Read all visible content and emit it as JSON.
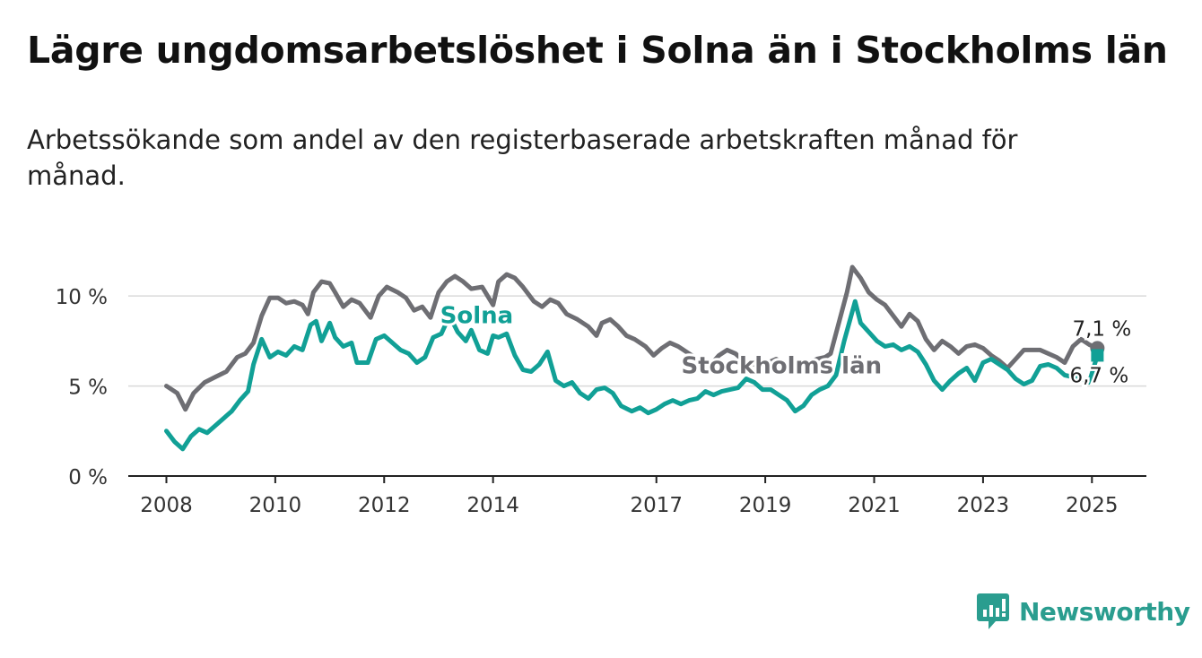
{
  "title": "Lägre ungdomsarbetslöshet i Solna än i Stockholms län",
  "subtitle": "Arbetssökande som andel av den registerbaserade arbetskraften månad för månad.",
  "brand": {
    "name": "Newsworthy",
    "icon": "chart-bubble-icon"
  },
  "chart_data": {
    "type": "line",
    "ylim": [
      0,
      12
    ],
    "xlim": [
      2007.3,
      2026.0
    ],
    "y_ticks": [
      {
        "value": 0,
        "label": "0 %"
      },
      {
        "value": 5,
        "label": "5 %"
      },
      {
        "value": 10,
        "label": "10 %"
      }
    ],
    "x_ticks": [
      {
        "value": 2008,
        "label": "2008"
      },
      {
        "value": 2010,
        "label": "2010"
      },
      {
        "value": 2012,
        "label": "2012"
      },
      {
        "value": 2014,
        "label": "2014"
      },
      {
        "value": 2017,
        "label": "2017"
      },
      {
        "value": 2019,
        "label": "2019"
      },
      {
        "value": 2021,
        "label": "2021"
      },
      {
        "value": 2023,
        "label": "2023"
      },
      {
        "value": 2025,
        "label": "2025"
      }
    ],
    "grid": true,
    "series": [
      {
        "name": "Stockholms län",
        "color": "#6e6e73",
        "end_label": "7,1 %",
        "points": [
          [
            2008.0,
            5.0
          ],
          [
            2008.2,
            4.6
          ],
          [
            2008.35,
            3.7
          ],
          [
            2008.5,
            4.6
          ],
          [
            2008.7,
            5.2
          ],
          [
            2008.9,
            5.5
          ],
          [
            2009.1,
            5.8
          ],
          [
            2009.3,
            6.6
          ],
          [
            2009.45,
            6.8
          ],
          [
            2009.6,
            7.4
          ],
          [
            2009.75,
            8.9
          ],
          [
            2009.9,
            9.9
          ],
          [
            2010.05,
            9.9
          ],
          [
            2010.2,
            9.6
          ],
          [
            2010.35,
            9.7
          ],
          [
            2010.5,
            9.5
          ],
          [
            2010.6,
            9.0
          ],
          [
            2010.7,
            10.2
          ],
          [
            2010.85,
            10.8
          ],
          [
            2011.0,
            10.7
          ],
          [
            2011.1,
            10.2
          ],
          [
            2011.25,
            9.4
          ],
          [
            2011.4,
            9.8
          ],
          [
            2011.55,
            9.6
          ],
          [
            2011.75,
            8.8
          ],
          [
            2011.9,
            10.0
          ],
          [
            2012.05,
            10.5
          ],
          [
            2012.25,
            10.2
          ],
          [
            2012.4,
            9.9
          ],
          [
            2012.55,
            9.2
          ],
          [
            2012.7,
            9.4
          ],
          [
            2012.85,
            8.8
          ],
          [
            2013.0,
            10.2
          ],
          [
            2013.15,
            10.8
          ],
          [
            2013.3,
            11.1
          ],
          [
            2013.45,
            10.8
          ],
          [
            2013.6,
            10.4
          ],
          [
            2013.8,
            10.5
          ],
          [
            2014.0,
            9.5
          ],
          [
            2014.1,
            10.8
          ],
          [
            2014.25,
            11.2
          ],
          [
            2014.4,
            11.0
          ],
          [
            2014.55,
            10.5
          ],
          [
            2014.75,
            9.7
          ],
          [
            2014.9,
            9.4
          ],
          [
            2015.05,
            9.8
          ],
          [
            2015.2,
            9.6
          ],
          [
            2015.35,
            9.0
          ],
          [
            2015.55,
            8.7
          ],
          [
            2015.75,
            8.3
          ],
          [
            2015.9,
            7.8
          ],
          [
            2016.0,
            8.5
          ],
          [
            2016.15,
            8.7
          ],
          [
            2016.3,
            8.3
          ],
          [
            2016.45,
            7.8
          ],
          [
            2016.6,
            7.6
          ],
          [
            2016.8,
            7.2
          ],
          [
            2016.95,
            6.7
          ],
          [
            2017.1,
            7.1
          ],
          [
            2017.25,
            7.4
          ],
          [
            2017.4,
            7.2
          ],
          [
            2017.55,
            6.9
          ],
          [
            2017.7,
            6.6
          ],
          [
            2017.85,
            6.4
          ],
          [
            2018.0,
            6.2
          ],
          [
            2018.15,
            6.7
          ],
          [
            2018.3,
            7.0
          ],
          [
            2018.45,
            6.8
          ],
          [
            2018.6,
            6.4
          ],
          [
            2018.75,
            6.3
          ],
          [
            2018.9,
            6.0
          ],
          [
            2019.05,
            6.3
          ],
          [
            2019.2,
            6.5
          ],
          [
            2019.35,
            6.2
          ],
          [
            2019.5,
            6.0
          ],
          [
            2019.65,
            6.1
          ],
          [
            2019.8,
            6.3
          ],
          [
            2019.95,
            6.5
          ],
          [
            2020.1,
            6.6
          ],
          [
            2020.2,
            6.8
          ],
          [
            2020.35,
            8.5
          ],
          [
            2020.5,
            10.2
          ],
          [
            2020.6,
            11.6
          ],
          [
            2020.75,
            11.0
          ],
          [
            2020.9,
            10.2
          ],
          [
            2021.05,
            9.8
          ],
          [
            2021.2,
            9.5
          ],
          [
            2021.35,
            8.9
          ],
          [
            2021.5,
            8.3
          ],
          [
            2021.65,
            9.0
          ],
          [
            2021.8,
            8.6
          ],
          [
            2021.95,
            7.6
          ],
          [
            2022.1,
            7.0
          ],
          [
            2022.25,
            7.5
          ],
          [
            2022.4,
            7.2
          ],
          [
            2022.55,
            6.8
          ],
          [
            2022.7,
            7.2
          ],
          [
            2022.85,
            7.3
          ],
          [
            2023.0,
            7.1
          ],
          [
            2023.15,
            6.7
          ],
          [
            2023.3,
            6.4
          ],
          [
            2023.45,
            6.0
          ],
          [
            2023.6,
            6.5
          ],
          [
            2023.75,
            7.0
          ],
          [
            2023.9,
            7.0
          ],
          [
            2024.05,
            7.0
          ],
          [
            2024.2,
            6.8
          ],
          [
            2024.35,
            6.6
          ],
          [
            2024.5,
            6.3
          ],
          [
            2024.65,
            7.2
          ],
          [
            2024.8,
            7.6
          ],
          [
            2024.95,
            7.3
          ],
          [
            2025.1,
            7.1
          ]
        ]
      },
      {
        "name": "Solna",
        "color": "#11a096",
        "end_label": "6,7 %",
        "points": [
          [
            2008.0,
            2.5
          ],
          [
            2008.15,
            1.9
          ],
          [
            2008.3,
            1.5
          ],
          [
            2008.45,
            2.2
          ],
          [
            2008.6,
            2.6
          ],
          [
            2008.75,
            2.4
          ],
          [
            2008.9,
            2.8
          ],
          [
            2009.05,
            3.2
          ],
          [
            2009.2,
            3.6
          ],
          [
            2009.35,
            4.2
          ],
          [
            2009.5,
            4.7
          ],
          [
            2009.6,
            6.2
          ],
          [
            2009.75,
            7.6
          ],
          [
            2009.9,
            6.6
          ],
          [
            2010.05,
            6.9
          ],
          [
            2010.2,
            6.7
          ],
          [
            2010.35,
            7.2
          ],
          [
            2010.5,
            7.0
          ],
          [
            2010.65,
            8.4
          ],
          [
            2010.75,
            8.6
          ],
          [
            2010.85,
            7.5
          ],
          [
            2011.0,
            8.5
          ],
          [
            2011.1,
            7.7
          ],
          [
            2011.25,
            7.2
          ],
          [
            2011.4,
            7.4
          ],
          [
            2011.5,
            6.3
          ],
          [
            2011.7,
            6.3
          ],
          [
            2011.85,
            7.6
          ],
          [
            2012.0,
            7.8
          ],
          [
            2012.15,
            7.4
          ],
          [
            2012.3,
            7.0
          ],
          [
            2012.45,
            6.8
          ],
          [
            2012.6,
            6.3
          ],
          [
            2012.75,
            6.6
          ],
          [
            2012.9,
            7.7
          ],
          [
            2013.05,
            7.9
          ],
          [
            2013.2,
            8.9
          ],
          [
            2013.35,
            8.0
          ],
          [
            2013.5,
            7.5
          ],
          [
            2013.6,
            8.1
          ],
          [
            2013.75,
            7.0
          ],
          [
            2013.9,
            6.8
          ],
          [
            2014.0,
            7.8
          ],
          [
            2014.1,
            7.7
          ],
          [
            2014.25,
            7.9
          ],
          [
            2014.4,
            6.7
          ],
          [
            2014.55,
            5.9
          ],
          [
            2014.7,
            5.8
          ],
          [
            2014.85,
            6.2
          ],
          [
            2015.0,
            6.9
          ],
          [
            2015.15,
            5.3
          ],
          [
            2015.3,
            5.0
          ],
          [
            2015.45,
            5.2
          ],
          [
            2015.6,
            4.6
          ],
          [
            2015.75,
            4.3
          ],
          [
            2015.9,
            4.8
          ],
          [
            2016.05,
            4.9
          ],
          [
            2016.2,
            4.6
          ],
          [
            2016.35,
            3.9
          ],
          [
            2016.55,
            3.6
          ],
          [
            2016.7,
            3.8
          ],
          [
            2016.85,
            3.5
          ],
          [
            2017.0,
            3.7
          ],
          [
            2017.15,
            4.0
          ],
          [
            2017.3,
            4.2
          ],
          [
            2017.45,
            4.0
          ],
          [
            2017.6,
            4.2
          ],
          [
            2017.75,
            4.3
          ],
          [
            2017.9,
            4.7
          ],
          [
            2018.05,
            4.5
          ],
          [
            2018.2,
            4.7
          ],
          [
            2018.35,
            4.8
          ],
          [
            2018.5,
            4.9
          ],
          [
            2018.65,
            5.4
          ],
          [
            2018.8,
            5.2
          ],
          [
            2018.95,
            4.8
          ],
          [
            2019.1,
            4.8
          ],
          [
            2019.25,
            4.5
          ],
          [
            2019.4,
            4.2
          ],
          [
            2019.55,
            3.6
          ],
          [
            2019.7,
            3.9
          ],
          [
            2019.85,
            4.5
          ],
          [
            2020.0,
            4.8
          ],
          [
            2020.15,
            5.0
          ],
          [
            2020.3,
            5.6
          ],
          [
            2020.45,
            7.5
          ],
          [
            2020.55,
            8.6
          ],
          [
            2020.65,
            9.7
          ],
          [
            2020.75,
            8.5
          ],
          [
            2020.9,
            8.0
          ],
          [
            2021.05,
            7.5
          ],
          [
            2021.2,
            7.2
          ],
          [
            2021.35,
            7.3
          ],
          [
            2021.5,
            7.0
          ],
          [
            2021.65,
            7.2
          ],
          [
            2021.8,
            6.9
          ],
          [
            2021.95,
            6.2
          ],
          [
            2022.1,
            5.3
          ],
          [
            2022.25,
            4.8
          ],
          [
            2022.4,
            5.3
          ],
          [
            2022.55,
            5.7
          ],
          [
            2022.7,
            6.0
          ],
          [
            2022.85,
            5.3
          ],
          [
            2023.0,
            6.3
          ],
          [
            2023.15,
            6.5
          ],
          [
            2023.3,
            6.2
          ],
          [
            2023.45,
            5.9
          ],
          [
            2023.6,
            5.4
          ],
          [
            2023.75,
            5.1
          ],
          [
            2023.9,
            5.3
          ],
          [
            2024.05,
            6.1
          ],
          [
            2024.2,
            6.2
          ],
          [
            2024.35,
            6.0
          ],
          [
            2024.5,
            5.6
          ],
          [
            2024.65,
            5.5
          ],
          [
            2024.8,
            5.4
          ],
          [
            2024.95,
            5.2
          ],
          [
            2025.05,
            6.2
          ],
          [
            2025.1,
            6.7
          ]
        ]
      }
    ],
    "annotations": [
      {
        "text": "Solna",
        "series": "Solna",
        "x": 2013.7,
        "y": 8.5
      },
      {
        "text": "Stockholms län",
        "series": "Stockholms län",
        "x": 2019.3,
        "y": 5.7
      }
    ]
  }
}
